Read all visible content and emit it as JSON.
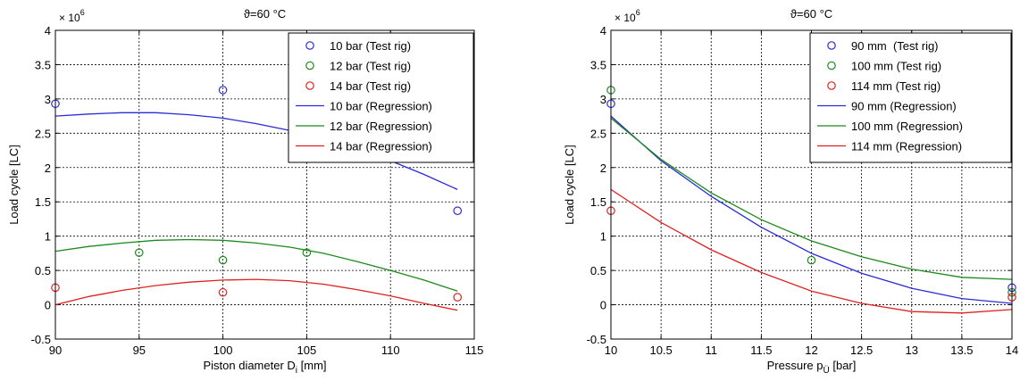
{
  "chart_data": [
    {
      "type": "scatter",
      "title": "ϑ=60 °C",
      "xlabel": "Piston diameter D",
      "xlabel_sub": "i",
      "xlabel_unit": " [mm]",
      "ylabel": "Load cycle [LC]",
      "y_multiplier": "× 10",
      "y_multiplier_exp": "6",
      "xlim": [
        90,
        115
      ],
      "ylim": [
        -0.5,
        4
      ],
      "xticks": [
        90,
        95,
        100,
        105,
        110,
        115
      ],
      "xtick_labels": [
        "90",
        "95",
        "100",
        "105",
        "110",
        "115"
      ],
      "yticks": [
        -0.5,
        0,
        0.5,
        1,
        1.5,
        2,
        2.5,
        3,
        3.5,
        4
      ],
      "ytick_labels": [
        "-0.5",
        "0",
        "0.5",
        "1",
        "1.5",
        "2",
        "2.5",
        "3",
        "3.5",
        "4"
      ],
      "grid": true,
      "legend_position": "top-right",
      "series": [
        {
          "name": "10 bar (Test rig)",
          "kind": "marker",
          "color": "#2b2bd6",
          "x": [
            90,
            100,
            114
          ],
          "y": [
            2.93,
            3.13,
            1.37
          ]
        },
        {
          "name": "12 bar (Test rig)",
          "kind": "marker",
          "color": "#1a8a1a",
          "x": [
            95,
            100,
            105
          ],
          "y": [
            0.76,
            0.65,
            0.76
          ]
        },
        {
          "name": "14 bar (Test rig)",
          "kind": "marker",
          "color": "#e02020",
          "x": [
            90,
            100,
            114
          ],
          "y": [
            0.25,
            0.18,
            0.11
          ]
        },
        {
          "name": "10 bar (Regression)",
          "kind": "line",
          "color": "#2b2bd6",
          "x": [
            90,
            92,
            94,
            96,
            98,
            100,
            102,
            104,
            106,
            108,
            110,
            112,
            114
          ],
          "y": [
            2.75,
            2.78,
            2.8,
            2.8,
            2.77,
            2.72,
            2.64,
            2.54,
            2.42,
            2.27,
            2.1,
            1.9,
            1.68
          ]
        },
        {
          "name": "12 bar (Regression)",
          "kind": "line",
          "color": "#1a8a1a",
          "x": [
            90,
            92,
            94,
            96,
            98,
            100,
            102,
            104,
            106,
            108,
            110,
            112,
            114
          ],
          "y": [
            0.78,
            0.85,
            0.9,
            0.94,
            0.95,
            0.94,
            0.9,
            0.84,
            0.75,
            0.63,
            0.5,
            0.36,
            0.2
          ]
        },
        {
          "name": "14 bar (Regression)",
          "kind": "line",
          "color": "#e02020",
          "x": [
            90,
            92,
            94,
            96,
            98,
            100,
            102,
            104,
            106,
            108,
            110,
            112,
            114
          ],
          "y": [
            0.0,
            0.12,
            0.21,
            0.28,
            0.33,
            0.36,
            0.37,
            0.35,
            0.3,
            0.22,
            0.13,
            0.02,
            -0.08
          ]
        }
      ]
    },
    {
      "type": "scatter",
      "title": "ϑ=60 °C",
      "xlabel": "Pressure p",
      "xlabel_sub": "Ü",
      "xlabel_unit": " [bar]",
      "ylabel": "Load cycle [LC]",
      "y_multiplier": "× 10",
      "y_multiplier_exp": "6",
      "xlim": [
        10,
        14
      ],
      "ylim": [
        -0.5,
        4
      ],
      "xticks": [
        10,
        10.5,
        11,
        11.5,
        12,
        12.5,
        13,
        13.5,
        14
      ],
      "xtick_labels": [
        "10",
        "10.5",
        "11",
        "11.5",
        "12",
        "12.5",
        "13",
        "13.5",
        "14"
      ],
      "yticks": [
        -0.5,
        0,
        0.5,
        1,
        1.5,
        2,
        2.5,
        3,
        3.5,
        4
      ],
      "ytick_labels": [
        "-0.5",
        "0",
        "0.5",
        "1",
        "1.5",
        "2",
        "2.5",
        "3",
        "3.5",
        "4"
      ],
      "grid": true,
      "legend_position": "top-right",
      "series": [
        {
          "name": "90 mm  (Test rig)",
          "kind": "marker",
          "color": "#2b2bd6",
          "x": [
            10,
            14
          ],
          "y": [
            2.93,
            0.25
          ]
        },
        {
          "name": "100 mm (Test rig)",
          "kind": "marker",
          "color": "#1a8a1a",
          "x": [
            10,
            12,
            14
          ],
          "y": [
            3.13,
            0.65,
            0.18
          ]
        },
        {
          "name": "114 mm (Test rig)",
          "kind": "marker",
          "color": "#e02020",
          "x": [
            10,
            14
          ],
          "y": [
            1.37,
            0.11
          ]
        },
        {
          "name": "90 mm (Regression)",
          "kind": "line",
          "color": "#2b2bd6",
          "x": [
            10,
            10.5,
            11,
            11.5,
            12,
            12.5,
            13,
            13.5,
            14
          ],
          "y": [
            2.75,
            2.1,
            1.58,
            1.13,
            0.75,
            0.46,
            0.24,
            0.09,
            0.02
          ]
        },
        {
          "name": "100 mm (Regression)",
          "kind": "line",
          "color": "#1a8a1a",
          "x": [
            10,
            10.5,
            11,
            11.5,
            12,
            12.5,
            13,
            13.5,
            14
          ],
          "y": [
            2.72,
            2.12,
            1.63,
            1.24,
            0.93,
            0.7,
            0.52,
            0.4,
            0.37
          ]
        },
        {
          "name": "114 mm (Regression)",
          "kind": "line",
          "color": "#e02020",
          "x": [
            10,
            10.5,
            11,
            11.5,
            12,
            12.5,
            13,
            13.5,
            14
          ],
          "y": [
            1.68,
            1.2,
            0.8,
            0.47,
            0.2,
            0.02,
            -0.1,
            -0.12,
            -0.07
          ]
        }
      ]
    }
  ]
}
